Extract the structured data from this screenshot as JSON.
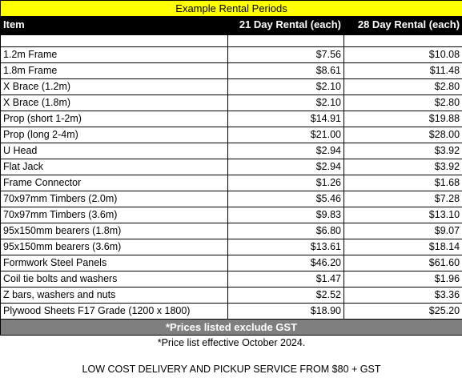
{
  "title": "Example Rental Periods",
  "headers": {
    "item": "Item",
    "rental21": "21 Day Rental (each)",
    "rental28": "28 Day Rental (each)"
  },
  "rows": [
    {
      "item": "1.2m Frame",
      "p21": "$7.56",
      "p28": "$10.08"
    },
    {
      "item": "1.8m Frame",
      "p21": "$8.61",
      "p28": "$11.48"
    },
    {
      "item": "X Brace (1.2m)",
      "p21": "$2.10",
      "p28": "$2.80"
    },
    {
      "item": "X Brace (1.8m)",
      "p21": "$2.10",
      "p28": "$2.80"
    },
    {
      "item": "Prop (short 1-2m)",
      "p21": "$14.91",
      "p28": "$19.88"
    },
    {
      "item": "Prop (long 2-4m)",
      "p21": "$21.00",
      "p28": "$28.00"
    },
    {
      "item": "U Head",
      "p21": "$2.94",
      "p28": "$3.92"
    },
    {
      "item": "Flat Jack",
      "p21": "$2.94",
      "p28": "$3.92"
    },
    {
      "item": "Frame Connector",
      "p21": "$1.26",
      "p28": "$1.68"
    },
    {
      "item": "70x97mm Timbers (2.0m)",
      "p21": "$5.46",
      "p28": "$7.28"
    },
    {
      "item": "70x97mm Timbers (3.6m)",
      "p21": "$9.83",
      "p28": "$13.10"
    },
    {
      "item": "95x150mm bearers (1.8m)",
      "p21": "$6.80",
      "p28": "$9.07"
    },
    {
      "item": "95x150mm bearers (3.6m)",
      "p21": "$13.61",
      "p28": "$18.14"
    },
    {
      "item": "Formwork Steel Panels",
      "p21": "$46.20",
      "p28": "$61.60"
    },
    {
      "item": "Coil tie bolts and washers",
      "p21": "$1.47",
      "p28": "$1.96"
    },
    {
      "item": "Z bars, washers and nuts",
      "p21": "$2.52",
      "p28": "$3.36"
    },
    {
      "item": "Plywood Sheets F17 Grade (1200 x 1800)",
      "p21": "$18.90",
      "p28": "$25.20"
    }
  ],
  "gst_note": "*Prices listed exclude GST",
  "effective_note": "*Price list effective October 2024.",
  "delivery_note": "LOW COST DELIVERY AND PICKUP SERVICE FROM $80 + GST",
  "colors": {
    "title_bg": "#ffff00",
    "header_bg": "#000000",
    "gst_bg": "#7f7f7f"
  }
}
